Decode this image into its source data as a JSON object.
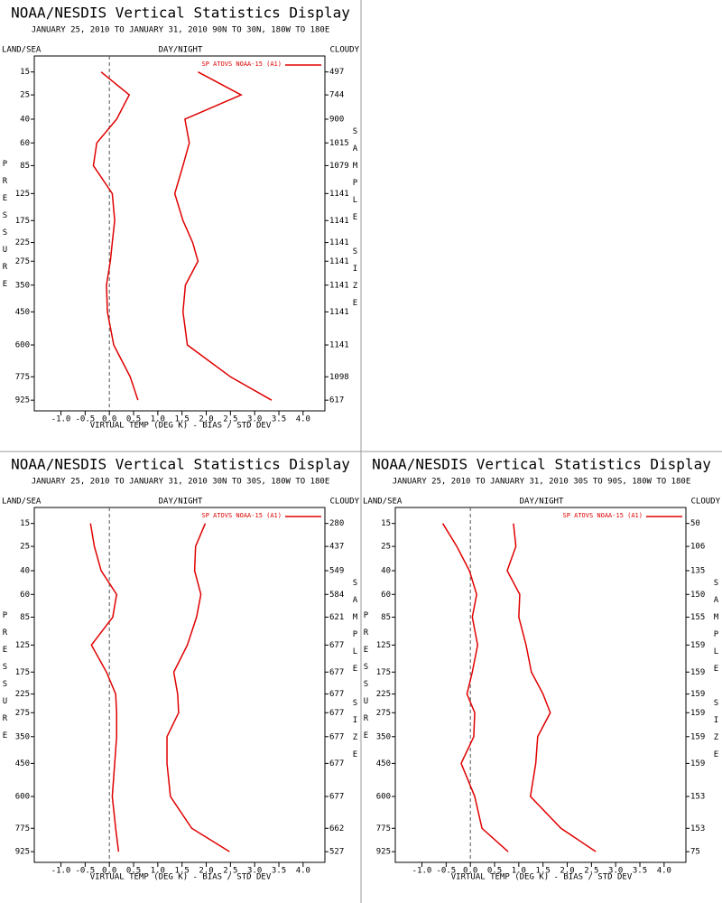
{
  "chart_data": [
    {
      "type": "line",
      "title": "NOAA/NESDIS Vertical Statistics Display",
      "subtitle": "JANUARY 25, 2010 TO JANUARY 31, 2010   90N TO 30N, 180W TO 180E",
      "corner_left": "LAND/SEA",
      "corner_center": "DAY/NIGHT",
      "corner_right": "CLOUDY",
      "y_label": "PRESSURE",
      "y2_label": "SAMPLE SIZE",
      "x_label": "VIRTUAL TEMP (DEG K) - BIAS / STD DEV",
      "y": [
        15,
        25,
        40,
        60,
        85,
        125,
        175,
        225,
        275,
        350,
        450,
        600,
        775,
        925
      ],
      "sample_size": [
        497,
        744,
        900,
        1015,
        1079,
        1141,
        1141,
        1141,
        1141,
        1141,
        1141,
        1141,
        1098,
        617
      ],
      "series": [
        {
          "name": "SP ATOVS NOAA-15 (A1)",
          "color": "#e00000",
          "values": [
            1.83,
            2.72,
            1.56,
            1.65,
            1.52,
            1.35,
            1.52,
            1.72,
            1.83,
            1.57,
            1.52,
            1.61,
            2.5,
            3.35
          ]
        },
        {
          "color": "#e00000",
          "values": [
            -0.17,
            0.41,
            0.15,
            -0.26,
            -0.33,
            0.06,
            0.11,
            0.06,
            0.02,
            -0.06,
            -0.04,
            0.09,
            0.43,
            0.59
          ]
        }
      ],
      "xlim": [
        -1.55,
        4.45
      ],
      "ylim": [
        10,
        1000
      ],
      "xticks": [
        {
          "value": -1,
          "label": "-1.0"
        },
        -0.5,
        {
          "value": 0,
          "label": "0.0"
        },
        0.5,
        {
          "value": 1,
          "label": "1.0"
        },
        1.5,
        {
          "value": 2,
          "label": "2.0"
        },
        2.5,
        {
          "value": 3,
          "label": "3.0"
        },
        3.5,
        {
          "value": 4,
          "label": "4.0"
        }
      ],
      "yticks": [
        15,
        25,
        40,
        60,
        85,
        125,
        175,
        225,
        275,
        350,
        450,
        600,
        775,
        925
      ]
    },
    {
      "type": "line",
      "title": "NOAA/NESDIS Vertical Statistics Display",
      "subtitle": "JANUARY 25, 2010 TO JANUARY 31, 2010   30N TO 30S, 180W TO 180E",
      "corner_left": "LAND/SEA",
      "corner_center": "DAY/NIGHT",
      "corner_right": "CLOUDY",
      "y_label": "PRESSURE",
      "y2_label": "SAMPLE SIZE",
      "x_label": "VIRTUAL TEMP (DEG K) - BIAS / STD DEV",
      "y": [
        15,
        25,
        40,
        60,
        85,
        125,
        175,
        225,
        275,
        350,
        450,
        600,
        775,
        925
      ],
      "sample_size": [
        280,
        437,
        549,
        584,
        621,
        677,
        677,
        677,
        677,
        677,
        677,
        677,
        662,
        527
      ],
      "series": [
        {
          "name": "SP ATOVS NOAA-15 (A1)",
          "color": "#e00000",
          "values": [
            1.98,
            1.78,
            1.76,
            1.89,
            1.8,
            1.61,
            1.33,
            1.41,
            1.43,
            1.19,
            1.19,
            1.26,
            1.7,
            2.48
          ]
        },
        {
          "color": "#e00000",
          "values": [
            -0.39,
            -0.31,
            -0.17,
            0.15,
            0.07,
            -0.37,
            -0.06,
            0.13,
            0.15,
            0.15,
            0.11,
            0.06,
            0.13,
            0.19
          ]
        }
      ],
      "xlim": [
        -1.55,
        4.45
      ],
      "ylim": [
        10,
        1000
      ],
      "xticks": [
        {
          "value": -1,
          "label": "-1.0"
        },
        -0.5,
        {
          "value": 0,
          "label": "0.0"
        },
        0.5,
        {
          "value": 1,
          "label": "1.0"
        },
        1.5,
        {
          "value": 2,
          "label": "2.0"
        },
        2.5,
        {
          "value": 3,
          "label": "3.0"
        },
        3.5,
        {
          "value": 4,
          "label": "4.0"
        }
      ],
      "yticks": [
        15,
        25,
        40,
        60,
        85,
        125,
        175,
        225,
        275,
        350,
        450,
        600,
        775,
        925
      ]
    },
    {
      "type": "line",
      "title": "NOAA/NESDIS Vertical Statistics Display",
      "subtitle": "JANUARY 25, 2010 TO JANUARY 31, 2010   30S TO 90S, 180W TO 180E",
      "corner_left": "LAND/SEA",
      "corner_center": "DAY/NIGHT",
      "corner_right": "CLOUDY",
      "y_label": "PRESSURE",
      "y2_label": "SAMPLE SIZE",
      "x_label": "VIRTUAL TEMP (DEG K) - BIAS / STD DEV",
      "y": [
        15,
        25,
        40,
        60,
        85,
        125,
        175,
        225,
        275,
        350,
        450,
        600,
        775,
        925
      ],
      "sample_size": [
        50,
        106,
        135,
        150,
        155,
        159,
        159,
        159,
        159,
        159,
        159,
        153,
        153,
        75
      ],
      "series": [
        {
          "name": "SP ATOVS NOAA-15 (A1)",
          "color": "#e00000",
          "values": [
            0.89,
            0.94,
            0.76,
            1.02,
            1.0,
            1.15,
            1.26,
            1.5,
            1.65,
            1.39,
            1.35,
            1.24,
            1.87,
            2.59
          ]
        },
        {
          "color": "#e00000",
          "values": [
            -0.57,
            -0.28,
            -0.02,
            0.13,
            0.04,
            0.15,
            0.04,
            -0.07,
            0.09,
            0.07,
            -0.19,
            0.09,
            0.24,
            0.78
          ]
        }
      ],
      "xlim": [
        -1.55,
        4.45
      ],
      "ylim": [
        10,
        1000
      ],
      "xticks": [
        {
          "value": -1,
          "label": "-1.0"
        },
        -0.5,
        {
          "value": 0,
          "label": "0.0"
        },
        0.5,
        {
          "value": 1,
          "label": "1.0"
        },
        1.5,
        {
          "value": 2,
          "label": "2.0"
        },
        2.5,
        {
          "value": 3,
          "label": "3.0"
        },
        3.5,
        {
          "value": 4,
          "label": "4.0"
        }
      ],
      "yticks": [
        15,
        25,
        40,
        60,
        85,
        125,
        175,
        225,
        275,
        350,
        450,
        600,
        775,
        925
      ]
    }
  ]
}
